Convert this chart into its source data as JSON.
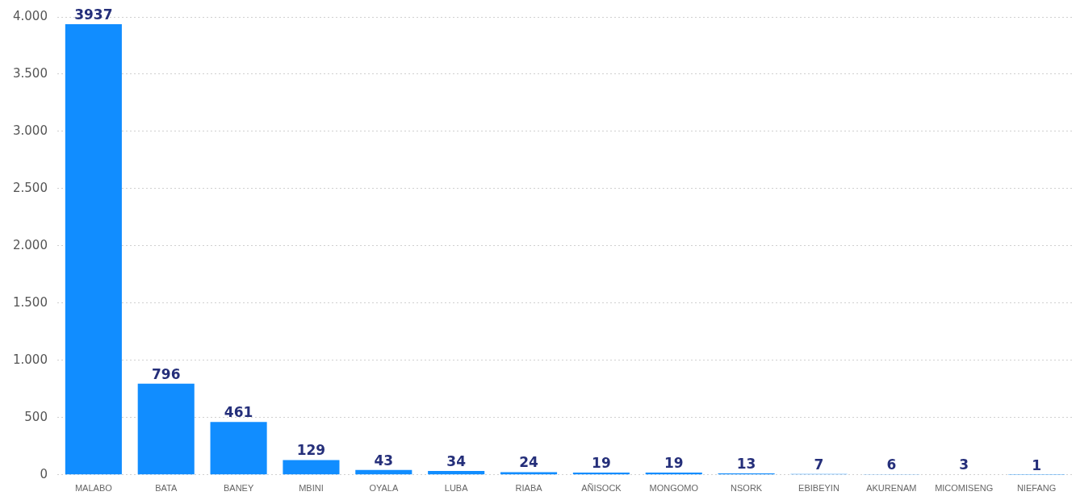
{
  "chart_data": {
    "type": "bar",
    "categories": [
      "MALABO",
      "BATA",
      "BANEY",
      "MBINI",
      "OYALA",
      "LUBA",
      "RIABA",
      "AÑISOCK",
      "MONGOMO",
      "NSORK",
      "EBIBEYIN",
      "AKURENAM",
      "MICOMISENG",
      "NIEFANG"
    ],
    "values": [
      3937,
      796,
      461,
      129,
      43,
      34,
      24,
      19,
      19,
      13,
      7,
      6,
      3,
      1
    ],
    "color": "#118dff",
    "ylim": [
      0,
      4000
    ],
    "yticks": [
      0,
      500,
      {
        "value": 1000,
        "label": "1.000"
      },
      {
        "value": 1500,
        "label": "1.500"
      },
      {
        "value": 2000,
        "label": "2.000"
      },
      {
        "value": 2500,
        "label": "2.500"
      },
      {
        "value": 3000,
        "label": "3.000"
      },
      {
        "value": 3500,
        "label": "3.500"
      },
      {
        "value": 4000,
        "label": "4.000"
      }
    ],
    "grid": "y",
    "data_labels": true
  }
}
